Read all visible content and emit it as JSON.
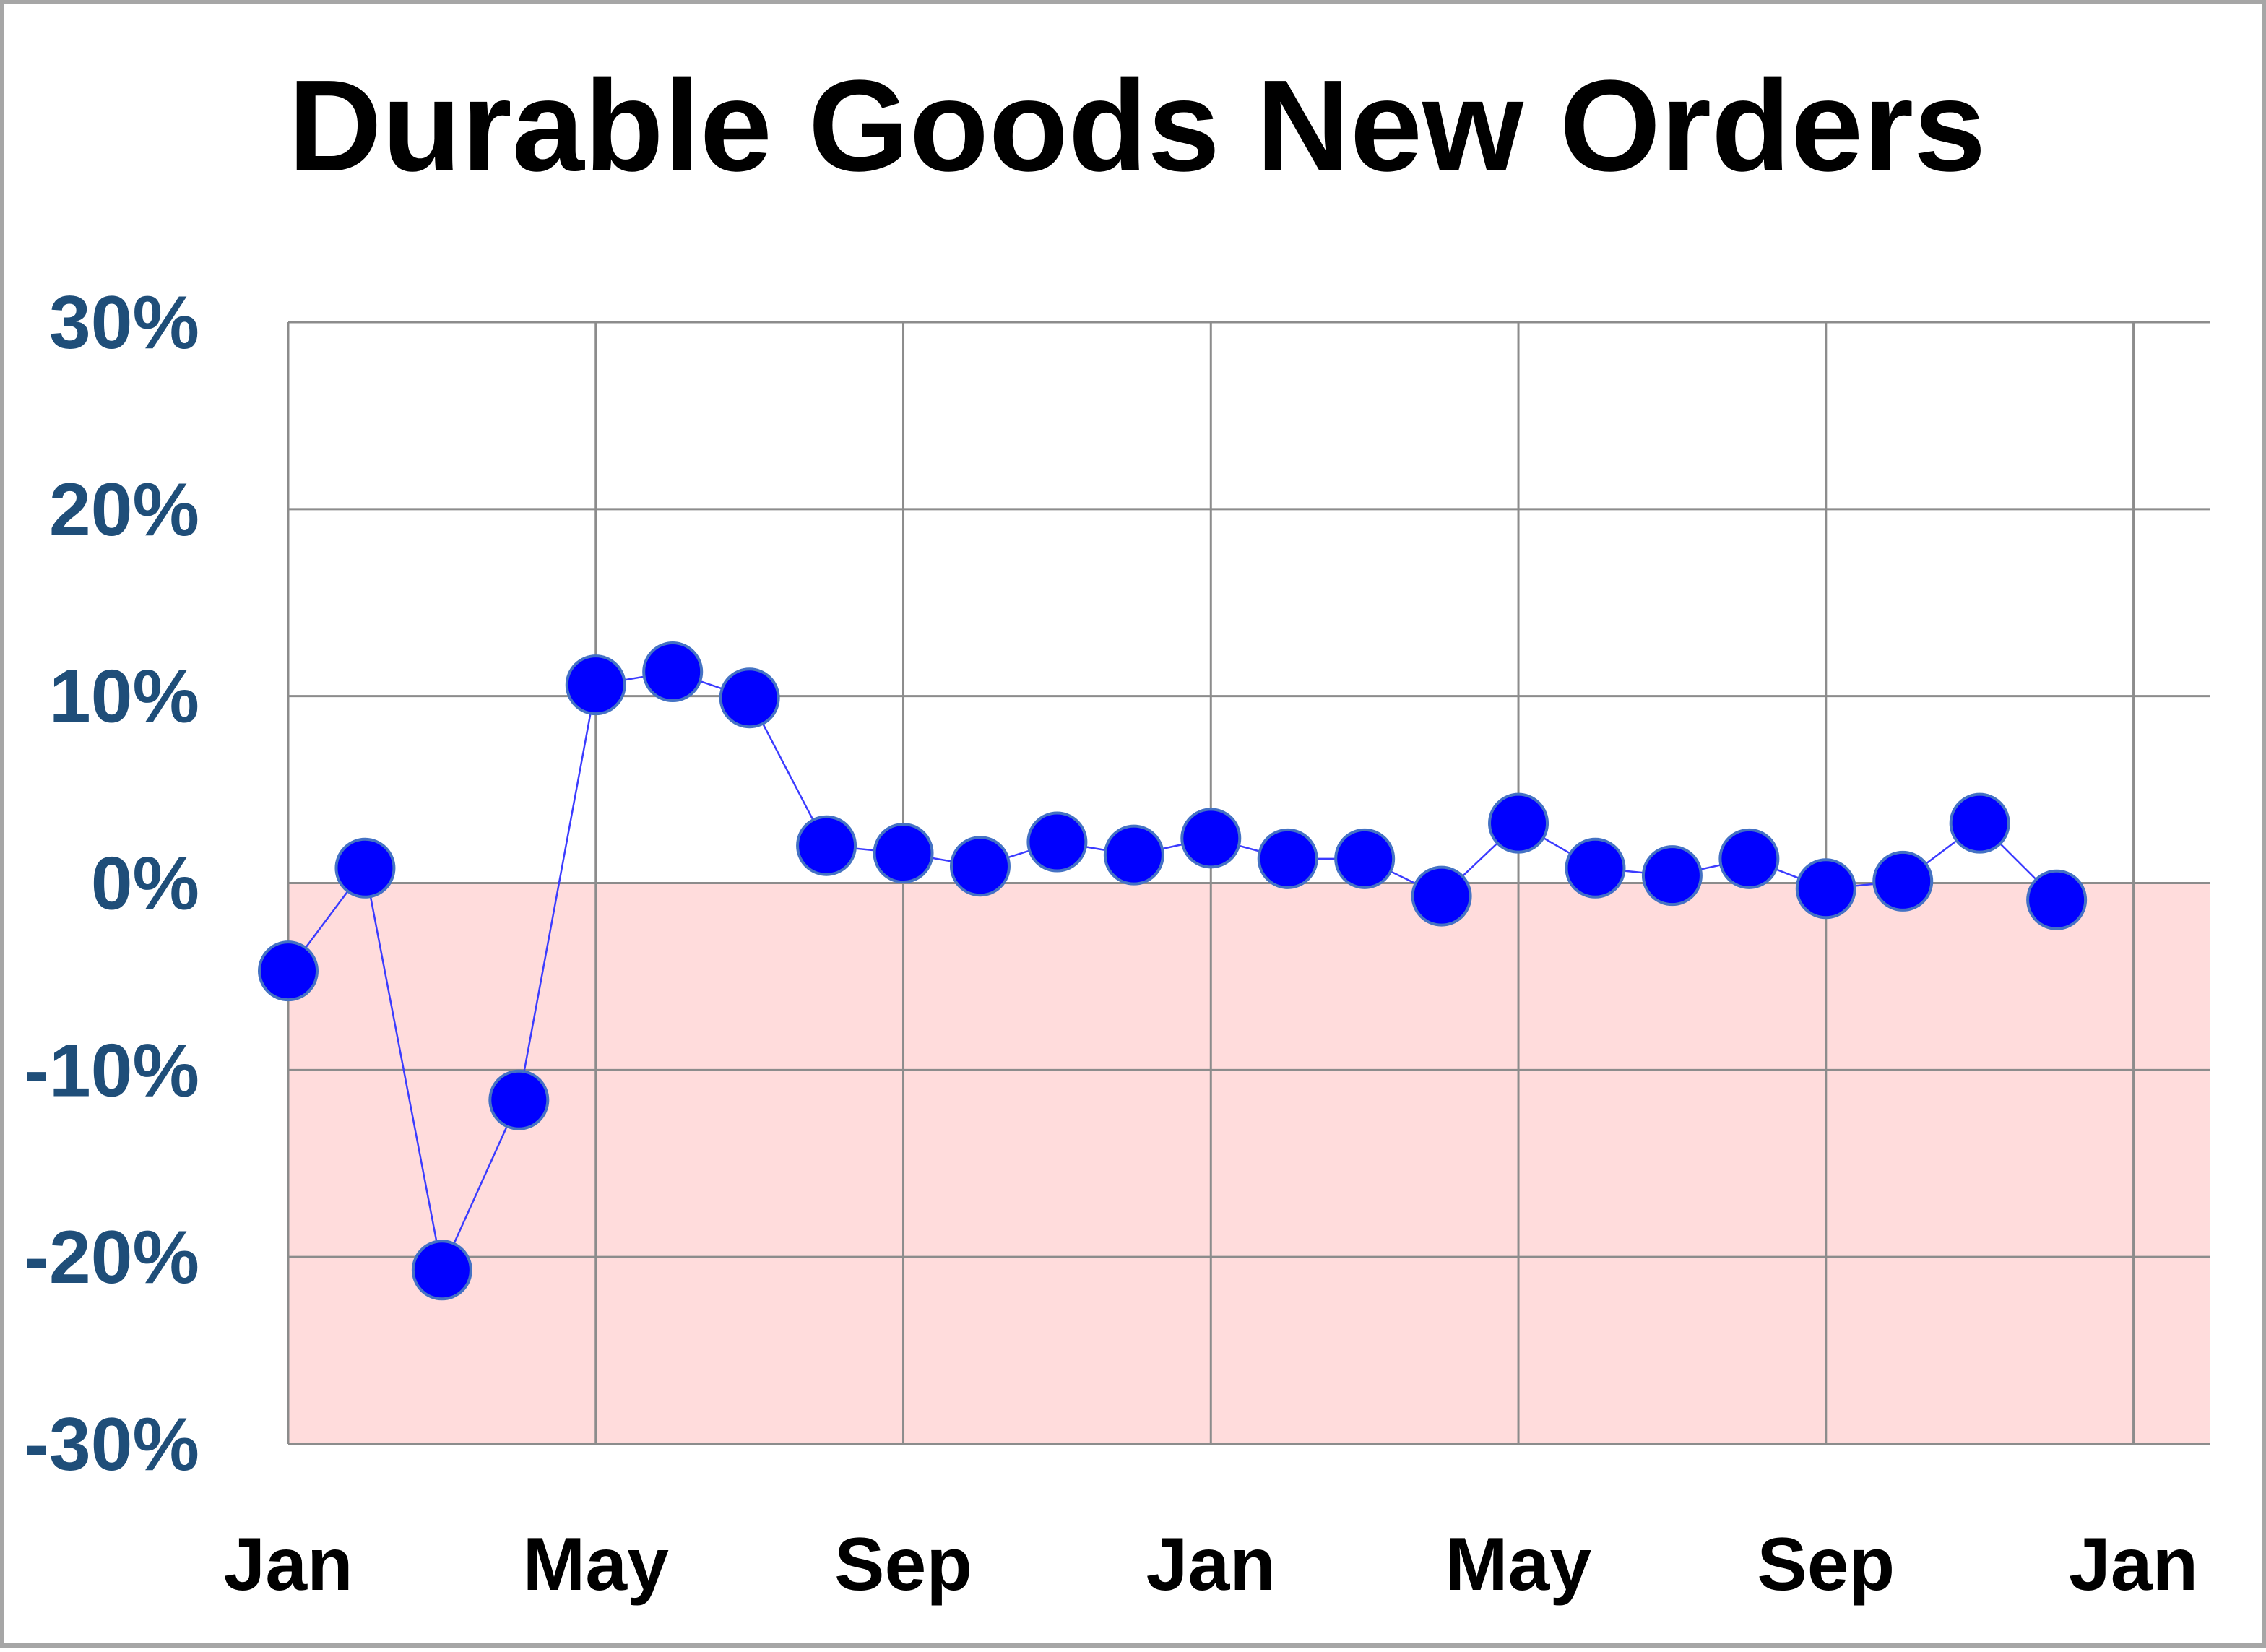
{
  "chart_data": {
    "type": "line",
    "title": "Durable Goods New Orders",
    "xlabel": "",
    "ylabel": "",
    "y_ticks": [
      "30%",
      "20%",
      "10%",
      "0%",
      "-10%",
      "-20%",
      "-30%"
    ],
    "y_tick_values": [
      30,
      20,
      10,
      0,
      -10,
      -20,
      -30
    ],
    "ylim": [
      -30,
      30
    ],
    "x_ticks": [
      "Jan",
      "May",
      "Sep",
      "Jan",
      "May",
      "Sep",
      "Jan"
    ],
    "x_tick_index": [
      0,
      4,
      8,
      12,
      16,
      20,
      24
    ],
    "xlim": [
      0,
      25
    ],
    "grid": true,
    "legend": "none",
    "negative_region_shaded": true,
    "colors": {
      "marker": "#0000ff",
      "marker_outline": "#4472c4",
      "line": "#3b3bff",
      "negative_fill": "#ffdcdc",
      "grid": "#8c8c8c",
      "y_tick_label": "#1f4e79",
      "x_tick_label": "#000000",
      "title": "#000000"
    },
    "series": [
      {
        "x": [
          0,
          1,
          2,
          3,
          4,
          5,
          6,
          7,
          8,
          9,
          10,
          11,
          12,
          13,
          14,
          15,
          16,
          17,
          18,
          19,
          20,
          21,
          22,
          23
        ],
        "values": [
          -4.7,
          0.8,
          -20.7,
          -11.6,
          10.6,
          11.3,
          9.9,
          2.0,
          1.6,
          0.9,
          2.2,
          1.5,
          2.4,
          1.3,
          1.3,
          -0.7,
          3.2,
          0.8,
          0.4,
          1.3,
          -0.3,
          0.1,
          3.2,
          -0.9
        ]
      }
    ]
  }
}
